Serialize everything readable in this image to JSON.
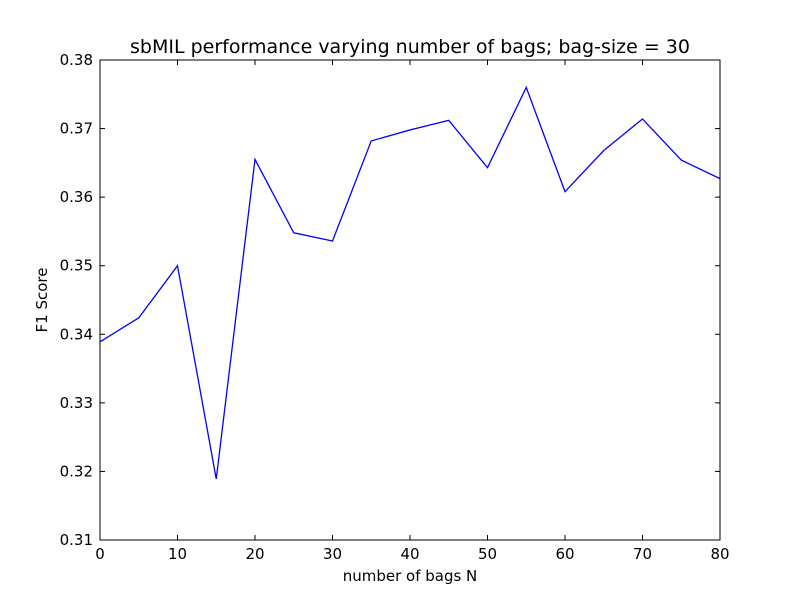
{
  "chart_data": {
    "type": "line",
    "title": "sbMIL performance varying number of bags; bag-size = 30",
    "xlabel": "number of bags N",
    "ylabel": "F1 Score",
    "xlim": [
      0,
      80
    ],
    "ylim": [
      0.31,
      0.38
    ],
    "xticks": [
      "0",
      "10",
      "20",
      "30",
      "40",
      "50",
      "60",
      "70",
      "80"
    ],
    "yticks": [
      "0.31",
      "0.32",
      "0.33",
      "0.34",
      "0.35",
      "0.36",
      "0.37",
      "0.38"
    ],
    "grid": false,
    "legend": "none",
    "series": [
      {
        "color": "#0000ff",
        "x": [
          0,
          5,
          10,
          15,
          20,
          25,
          30,
          35,
          40,
          45,
          50,
          55,
          60,
          65,
          70,
          75,
          80
        ],
        "y": [
          0.3389,
          0.3424,
          0.35,
          0.3189,
          0.3655,
          0.3548,
          0.3536,
          0.3682,
          0.3698,
          0.3712,
          0.3643,
          0.376,
          0.3608,
          0.3668,
          0.3714,
          0.3654,
          0.3627
        ]
      }
    ]
  }
}
